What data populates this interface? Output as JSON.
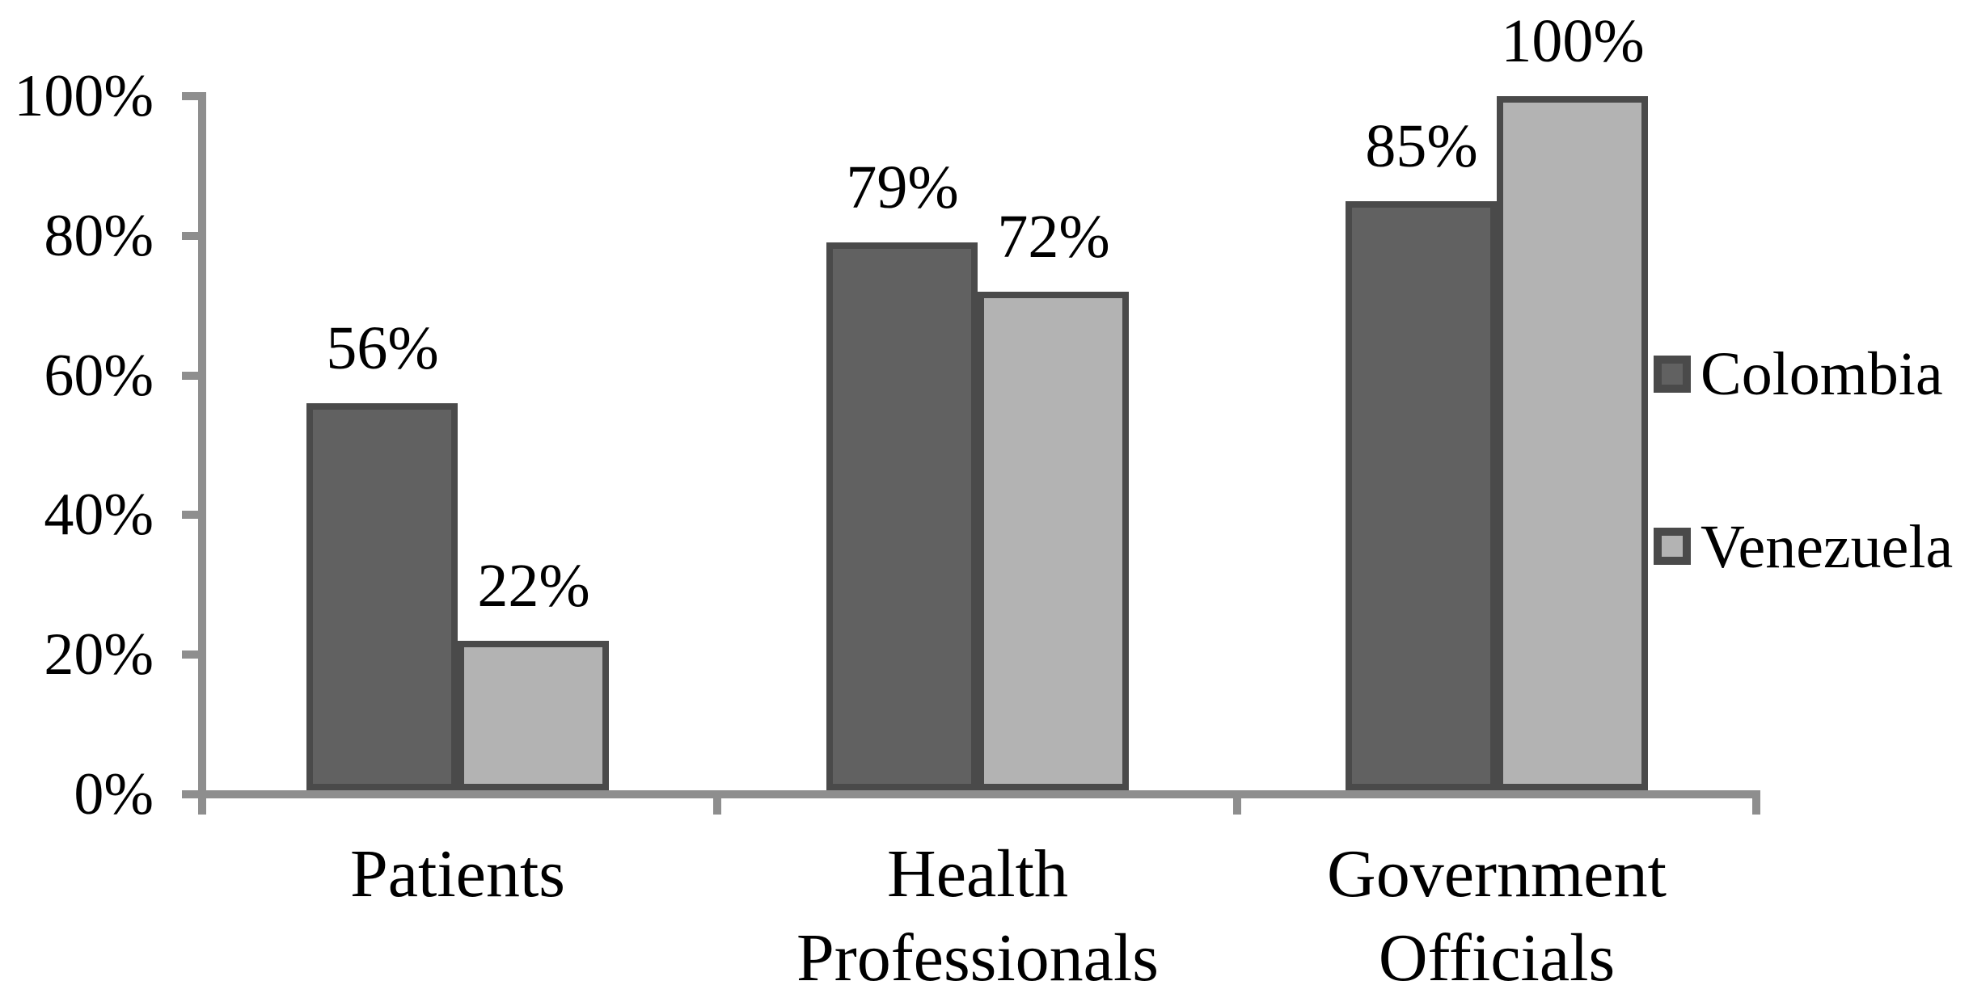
{
  "chart_data": {
    "type": "bar",
    "title": "",
    "xlabel": "",
    "ylabel": "",
    "categories": [
      "Patients",
      "Health Professionals",
      "Government Officials"
    ],
    "category_label_lines": [
      [
        "Patients"
      ],
      [
        "Health",
        "Professionals"
      ],
      [
        "Government",
        "Officials"
      ]
    ],
    "series": [
      {
        "name": "Colombia",
        "values": [
          56,
          79,
          85
        ],
        "data_labels": [
          "56%",
          "79%",
          "85%"
        ],
        "fill": "#616161",
        "border": "#4A4A4A"
      },
      {
        "name": "Venezuela",
        "values": [
          22,
          72,
          100
        ],
        "data_labels": [
          "22%",
          "72%",
          "100%"
        ],
        "fill": "#B3B3B3",
        "border": "#4A4A4A"
      }
    ],
    "ylim": [
      0,
      100
    ],
    "yticks": [
      0,
      20,
      40,
      60,
      80,
      100
    ],
    "ytick_labels": [
      "0%",
      "20%",
      "40%",
      "60%",
      "80%",
      "100%"
    ],
    "grid": false,
    "legend_position": "right",
    "axis_color": "#8E8E8E",
    "text_color": "#000000"
  }
}
